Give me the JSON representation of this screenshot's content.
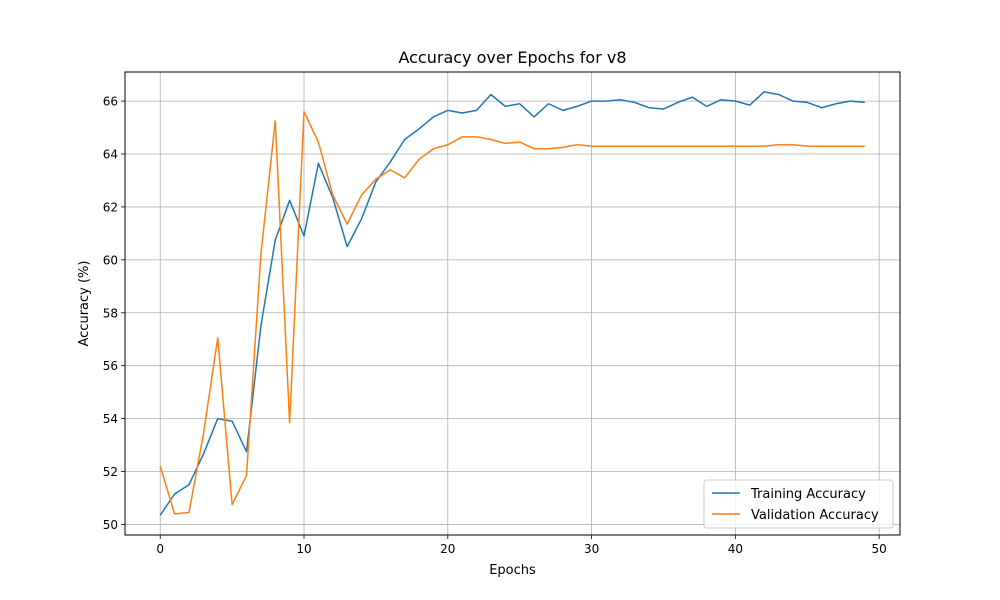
{
  "chart_data": {
    "type": "line",
    "title": "Accuracy over Epochs for v8",
    "xlabel": "Epochs",
    "ylabel": "Accuracy (%)",
    "xlim": [
      -2.45,
      51.45
    ],
    "ylim": [
      49.6,
      67.1
    ],
    "xticks": [
      0,
      10,
      20,
      30,
      40,
      50
    ],
    "yticks": [
      50,
      52,
      54,
      56,
      58,
      60,
      62,
      64,
      66
    ],
    "grid": true,
    "legend_position": "bottom-right",
    "x": [
      0,
      1,
      2,
      3,
      4,
      5,
      6,
      7,
      8,
      9,
      10,
      11,
      12,
      13,
      14,
      15,
      16,
      17,
      18,
      19,
      20,
      21,
      22,
      23,
      24,
      25,
      26,
      27,
      28,
      29,
      30,
      31,
      32,
      33,
      34,
      35,
      36,
      37,
      38,
      39,
      40,
      41,
      42,
      43,
      44,
      45,
      46,
      47,
      48,
      49
    ],
    "series": [
      {
        "name": "Training Accuracy",
        "color": "#1f77b4",
        "values": [
          50.35,
          51.15,
          51.5,
          52.65,
          54.0,
          53.9,
          52.75,
          57.5,
          60.75,
          62.25,
          60.9,
          63.65,
          62.35,
          60.5,
          61.55,
          62.95,
          63.7,
          64.55,
          64.95,
          65.4,
          65.65,
          65.55,
          65.65,
          66.25,
          65.8,
          65.9,
          65.4,
          65.9,
          65.65,
          65.8,
          66.0,
          66.0,
          66.05,
          65.95,
          65.75,
          65.7,
          65.95,
          66.15,
          65.8,
          66.05,
          66.0,
          65.85,
          66.35,
          66.25,
          66.0,
          65.95,
          65.75,
          65.9,
          66.0,
          65.95
        ]
      },
      {
        "name": "Validation Accuracy",
        "color": "#ff7f0e",
        "values": [
          52.2,
          50.4,
          50.45,
          53.4,
          57.05,
          50.75,
          51.85,
          60.2,
          65.25,
          53.85,
          65.6,
          64.45,
          62.45,
          61.35,
          62.45,
          63.05,
          63.4,
          63.1,
          63.8,
          64.2,
          64.35,
          64.65,
          64.65,
          64.55,
          64.4,
          64.45,
          64.2,
          64.2,
          64.25,
          64.35,
          64.3,
          64.3,
          64.3,
          64.3,
          64.3,
          64.3,
          64.3,
          64.3,
          64.3,
          64.3,
          64.3,
          64.3,
          64.3,
          64.35,
          64.35,
          64.3,
          64.3,
          64.3,
          64.3,
          64.3
        ]
      }
    ]
  }
}
